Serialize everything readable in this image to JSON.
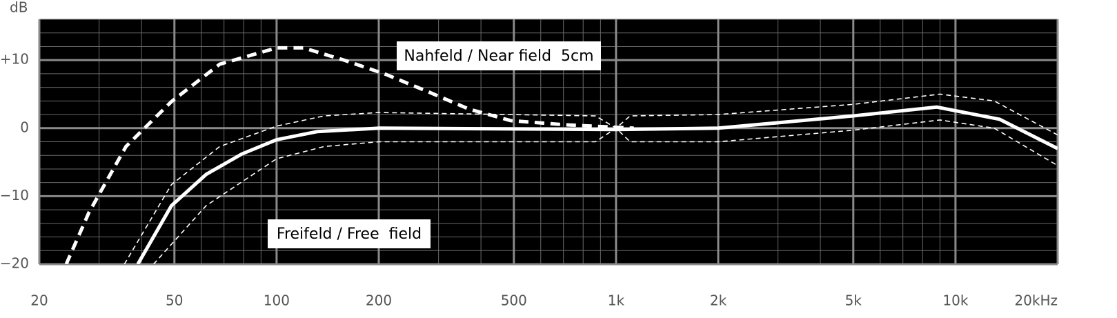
{
  "chart_data": {
    "type": "line",
    "y_label": "dB",
    "log_x": true,
    "grid": true,
    "xlim": [
      20,
      20000
    ],
    "ylim": [
      -20,
      16
    ],
    "xticks": [
      20,
      50,
      100,
      200,
      500,
      {
        "value": 1000,
        "label": "1k"
      },
      {
        "value": 2000,
        "label": "2k"
      },
      {
        "value": 5000,
        "label": "5k"
      },
      {
        "value": 10000,
        "label": "10k"
      },
      {
        "value": 20000,
        "label": "20kHz"
      }
    ],
    "yticks": [
      {
        "value": 10,
        "label": "+10"
      },
      0,
      {
        "value": -10,
        "label": "−10"
      },
      {
        "value": -20,
        "label": "−20"
      }
    ],
    "series": [
      {
        "name": "Nahfeld / Near field  5cm",
        "color": "#ffffff",
        "line_style": "dashed",
        "weight": "thick",
        "x": [
          24,
          28,
          36,
          49,
          68,
          100,
          120,
          158,
          210,
          278,
          369,
          490,
          707,
          1128
        ],
        "values": [
          -20,
          -12.4,
          -2.7,
          3.9,
          9.4,
          11.8,
          11.8,
          10,
          7.9,
          5.4,
          2.8,
          1.1,
          0.5,
          0
        ]
      },
      {
        "name": "Freifeld / Free  field",
        "color": "#ffffff",
        "line_style": "solid",
        "weight": "thick",
        "x": [
          39,
          49,
          62,
          79,
          100,
          132,
          201,
          1000,
          2000,
          5000,
          8800,
          13500,
          20000
        ],
        "values": [
          -20,
          -11.4,
          -6.8,
          -3.8,
          -1.7,
          -0.5,
          0,
          -0.2,
          0,
          1.8,
          3.1,
          1.3,
          -3
        ]
      },
      {
        "color": "#ffffff",
        "line_style": "dashed",
        "weight": "thin",
        "x": [
          35.6,
          49,
          68,
          100,
          138,
          200,
          870,
          1000,
          1100,
          2000,
          5000,
          9000,
          13000,
          20000
        ],
        "values": [
          -20,
          -8.3,
          -2.7,
          0.3,
          1.8,
          2.3,
          1.8,
          0,
          1.8,
          2,
          3.5,
          5,
          4,
          -1
        ]
      },
      {
        "color": "#ffffff",
        "line_style": "dashed",
        "weight": "thin",
        "x": [
          43.4,
          62,
          100,
          138,
          200,
          870,
          1000,
          1100,
          2000,
          5000,
          9000,
          13000,
          20000
        ],
        "values": [
          -20,
          -11.4,
          -4.5,
          -2.7,
          -2,
          -2,
          0,
          -2,
          -2,
          -0.3,
          1.2,
          0,
          -5.5
        ]
      }
    ]
  }
}
